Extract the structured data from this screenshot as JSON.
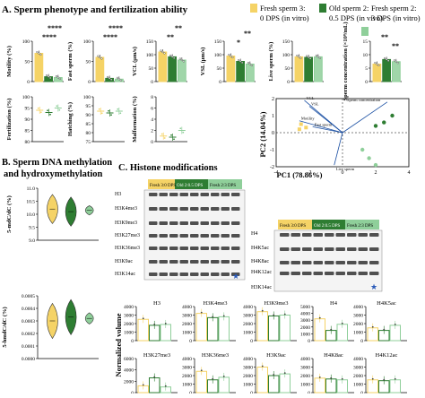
{
  "panel_a": {
    "title": "A. Sperm phenotype and fertilization ability",
    "legend": [
      {
        "line1": "Fresh sperm 3:",
        "line2": "0 DPS (in vitro)",
        "color": "#f5d366"
      },
      {
        "line1": "Old sperm 2:",
        "line2": "0.5 DPS (in vivo)",
        "color": "#2e7d32"
      },
      {
        "line1": "Fresh sperm 2:",
        "line2": "3 DPS (in vitro)",
        "color": "#8fcf9a"
      }
    ],
    "sig_marks": [
      "****",
      "****",
      "****",
      "****",
      "**",
      "**",
      "**",
      "*",
      "**",
      "**"
    ],
    "pca": {
      "xlabel": "PC1 (78.86%)",
      "ylabel": "PC2 (14.04%)",
      "x_ticks": [
        "-4",
        "-2",
        "0",
        "2",
        "4"
      ],
      "y_ticks": [
        "2",
        "1",
        "0",
        "-1",
        "-2"
      ],
      "labels": [
        "VCL",
        "VSL",
        "Motility",
        "Fast sperm",
        "Sperm concentration",
        "Live sperm"
      ]
    }
  },
  "chart_data": [
    {
      "type": "bar",
      "ylabel": "Motility (%)",
      "categories": [
        "Fresh 3",
        "Old 2",
        "Fresh 2"
      ],
      "values": [
        70,
        12,
        10
      ],
      "ylim": [
        0,
        100
      ],
      "yticks": [
        "100",
        "50",
        "0"
      ]
    },
    {
      "type": "bar",
      "ylabel": "Fast sperm (%)",
      "categories": [
        "Fresh 3",
        "Old 2",
        "Fresh 2"
      ],
      "values": [
        60,
        8,
        6
      ],
      "ylim": [
        0,
        100
      ],
      "yticks": [
        "100",
        "50",
        "0"
      ]
    },
    {
      "type": "bar",
      "ylabel": "VCL (μm/s)",
      "categories": [
        "Fresh 3",
        "Old 2",
        "Fresh 2"
      ],
      "values": [
        110,
        92,
        80
      ],
      "ylim": [
        0,
        150
      ],
      "yticks": [
        "150",
        "100",
        "50",
        "0"
      ]
    },
    {
      "type": "bar",
      "ylabel": "VSL (μm/s)",
      "categories": [
        "Fresh 3",
        "Old 2",
        "Fresh 2"
      ],
      "values": [
        95,
        75,
        65
      ],
      "ylim": [
        0,
        150
      ],
      "yticks": [
        "150",
        "100",
        "50",
        "0"
      ]
    },
    {
      "type": "bar",
      "ylabel": "Live sperm (%)",
      "categories": [
        "Fresh 3",
        "Old 2",
        "Fresh 2"
      ],
      "values": [
        92,
        90,
        92
      ],
      "ylim": [
        0,
        150
      ],
      "yticks": [
        "150",
        "100",
        "50",
        "0"
      ]
    },
    {
      "type": "bar",
      "ylabel": "Sperm concentration (×10⁸/mL)",
      "categories": [
        "Fresh 3",
        "Old 2",
        "Fresh 2"
      ],
      "values": [
        6.5,
        8.2,
        7.4
      ],
      "ylim": [
        0,
        15
      ],
      "yticks": [
        "15",
        "10",
        "5",
        "0"
      ]
    },
    {
      "type": "scatter",
      "ylabel": "Fertilization (%)",
      "categories": [
        "Fresh 3",
        "Old 2",
        "Fresh 2"
      ],
      "values": [
        94,
        93,
        95
      ],
      "ylim": [
        80,
        100
      ],
      "yticks": [
        "100",
        "95",
        "90",
        "85",
        "80"
      ]
    },
    {
      "type": "scatter",
      "ylabel": "Hatching (%)",
      "categories": [
        "Fresh 3",
        "Old 2",
        "Fresh 2"
      ],
      "values": [
        92,
        91,
        92
      ],
      "ylim": [
        75,
        100
      ],
      "yticks": [
        "100",
        "95",
        "90",
        "85",
        "80",
        "75"
      ]
    },
    {
      "type": "scatter",
      "ylabel": "Malformation (%)",
      "categories": [
        "Fresh 3",
        "Old 2",
        "Fresh 2"
      ],
      "values": [
        1.0,
        0.8,
        2.0
      ],
      "ylim": [
        0,
        8
      ],
      "yticks": [
        "8",
        "6",
        "4",
        "2",
        "0"
      ]
    },
    {
      "type": "scatter",
      "xlabel": "PC1 (78.86%)",
      "ylabel": "PC2 (14.04%)",
      "xlim": [
        -4,
        4
      ],
      "ylim": [
        -2,
        2
      ],
      "series": [
        {
          "name": "Fresh sperm 3: 0 DPS (in vitro)",
          "x": [
            -2.2,
            -2.5,
            -2.6
          ],
          "y": [
            0.3,
            0.5,
            0.2
          ]
        },
        {
          "name": "Old sperm 2: 0.5 DPS (in vivo)",
          "x": [
            2.0,
            3.0,
            2.5
          ],
          "y": [
            0.4,
            1.0,
            0.6
          ]
        },
        {
          "name": "Fresh sperm 2: 3 DPS (in vitro)",
          "x": [
            1.2,
            1.6,
            2.0
          ],
          "y": [
            -1.0,
            -1.5,
            -1.9
          ]
        }
      ]
    },
    {
      "type": "violin",
      "ylabel": "5-mdC/dC (%)",
      "categories": [
        "Fresh 3",
        "Old 2",
        "Fresh 2"
      ],
      "values": [
        10.2,
        10.1,
        10.15
      ],
      "ylim": [
        9.0,
        11.0
      ],
      "yticks": [
        "11.0",
        "10.5",
        "10.0",
        "9.5",
        "9.0"
      ]
    },
    {
      "type": "violin",
      "ylabel": "5-hmdC/dC (%)",
      "categories": [
        "Fresh 3",
        "Old 2",
        "Fresh 2"
      ],
      "values": [
        0.0003,
        0.00033,
        0.00032
      ],
      "ylim": [
        0,
        0.0005
      ],
      "yticks": [
        "0.0005",
        "0.0004",
        "0.0003",
        "0.0002",
        "0.0001",
        "0.0000"
      ]
    },
    {
      "type": "bar",
      "title": "H3",
      "values": [
        2500,
        1800,
        1900
      ],
      "ylim": [
        0,
        4000
      ],
      "yticks": [
        "4000",
        "3000",
        "2000",
        "1000",
        "0"
      ]
    },
    {
      "type": "bar",
      "title": "H3K4me3",
      "values": [
        3200,
        2700,
        2800
      ],
      "ylim": [
        0,
        4000
      ],
      "yticks": [
        "4000",
        "3000",
        "2000",
        "1000",
        "0"
      ]
    },
    {
      "type": "bar",
      "title": "H3K9me3",
      "values": [
        3400,
        2900,
        3000
      ],
      "ylim": [
        0,
        4000
      ],
      "yticks": [
        "4000",
        "3000",
        "2000",
        "1000",
        "0"
      ]
    },
    {
      "type": "bar",
      "title": "H4",
      "values": [
        3200,
        1500,
        2400
      ],
      "ylim": [
        0,
        5000
      ],
      "yticks": [
        "5000",
        "4000",
        "3000",
        "2000",
        "1000",
        "0"
      ]
    },
    {
      "type": "bar",
      "title": "H4K5ac",
      "values": [
        1500,
        1200,
        1800
      ],
      "ylim": [
        0,
        4000
      ],
      "yticks": [
        "4000",
        "3000",
        "2000",
        "1000",
        "0"
      ]
    },
    {
      "type": "bar",
      "title": "H3K27me3",
      "values": [
        1200,
        2600,
        1000
      ],
      "ylim": [
        0,
        6000
      ],
      "yticks": [
        "6000",
        "4000",
        "2000",
        "0"
      ]
    },
    {
      "type": "bar",
      "title": "H3K36me3",
      "values": [
        2500,
        1500,
        1800
      ],
      "ylim": [
        0,
        4000
      ],
      "yticks": [
        "4000",
        "3000",
        "2000",
        "1000",
        "0"
      ]
    },
    {
      "type": "bar",
      "title": "H3K9ac",
      "values": [
        3000,
        2000,
        2200
      ],
      "ylim": [
        0,
        4000
      ],
      "yticks": [
        "4000",
        "3000",
        "2000",
        "1000",
        "0"
      ]
    },
    {
      "type": "bar",
      "title": "H4K8ac",
      "values": [
        1700,
        1600,
        1500
      ],
      "ylim": [
        0,
        4000
      ],
      "yticks": [
        "4000",
        "3000",
        "2000",
        "1000",
        "0"
      ]
    },
    {
      "type": "bar",
      "title": "H4K12ac",
      "values": [
        1500,
        1400,
        1500
      ],
      "ylim": [
        0,
        4000
      ],
      "yticks": [
        "4000",
        "3000",
        "2000",
        "1000",
        "0"
      ]
    }
  ],
  "panel_b": {
    "title_line1": "B. Sperm DNA methylation",
    "title_line2": "and hydroxymethylation"
  },
  "panel_c": {
    "title": "C. Histone modifications",
    "blot_headers": [
      "Fresh 3:0 DPS",
      "Old 2:0.5 DPS",
      "Fresh 2:3 DPS"
    ],
    "blot_left_labels": [
      "H3",
      "H3K4me3",
      "H3K9me3",
      "H3K27me3",
      "H3K36me3",
      "H3K9ac",
      "H3K14ac"
    ],
    "blot_right_labels": [
      "H4",
      "H4K5ac",
      "H4K8ac",
      "H4K12ac",
      "H3K14ac"
    ],
    "ylabel": "Normalized volume"
  }
}
